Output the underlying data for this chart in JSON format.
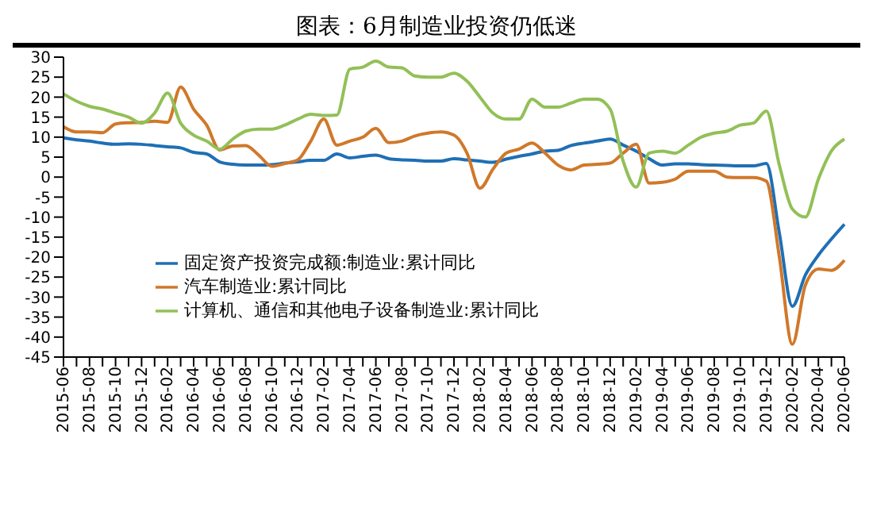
{
  "chart_data": {
    "type": "line",
    "title": "图表：6月制造业投资仍低迷",
    "categories": [
      "2015-06",
      null,
      "2015-08",
      null,
      "2015-10",
      null,
      "2015-12",
      null,
      "2016-02",
      null,
      "2016-04",
      null,
      "2016-06",
      null,
      "2016-08",
      null,
      "2016-10",
      null,
      "2016-12",
      null,
      "2017-02",
      null,
      "2017-04",
      null,
      "2017-06",
      null,
      "2017-08",
      null,
      "2017-10",
      null,
      "2017-12",
      null,
      "2018-02",
      null,
      "2018-04",
      null,
      "2018-06",
      null,
      "2018-08",
      null,
      "2018-10",
      null,
      "2018-12",
      null,
      "2019-02",
      null,
      "2019-04",
      null,
      "2019-06",
      null,
      "2019-08",
      null,
      "2019-10",
      null,
      "2019-12",
      null,
      "2020-02",
      null,
      "2020-04",
      null,
      "2020-06"
    ],
    "series": [
      {
        "name": "固定资产投资完成额:制造业:累计同比",
        "color": "#1f6fb5",
        "values": [
          9.8,
          9.3,
          9.0,
          8.5,
          8.2,
          8.3,
          8.2,
          7.9,
          7.6,
          7.3,
          6.2,
          5.8,
          3.8,
          3.2,
          3.0,
          3.0,
          3.1,
          3.5,
          3.8,
          4.2,
          4.2,
          5.8,
          4.8,
          5.2,
          5.5,
          4.6,
          4.3,
          4.2,
          4.0,
          4.0,
          4.6,
          4.3,
          4.0,
          3.7,
          4.5,
          5.2,
          5.8,
          6.5,
          6.7,
          7.9,
          8.5,
          9.0,
          9.5,
          8.0,
          6.5,
          4.6,
          3.0,
          3.3,
          3.3,
          3.1,
          3.0,
          2.9,
          2.8,
          2.8,
          3.4,
          -14,
          -32.3,
          -24.5,
          -19.5,
          -15.5,
          -11.8
        ]
      },
      {
        "name": "汽车制造业:累计同比",
        "color": "#d0782a",
        "values": [
          12.6,
          11.3,
          11.3,
          11.1,
          13.3,
          13.6,
          13.7,
          14.0,
          13.7,
          22.5,
          17,
          13,
          6.8,
          7.8,
          7.9,
          5.5,
          2.7,
          3.4,
          4.3,
          9,
          14.5,
          8,
          9,
          10,
          12.2,
          8.6,
          9,
          10.3,
          11.0,
          11.3,
          10.5,
          6,
          -2.8,
          2,
          6,
          7,
          8.5,
          6,
          3,
          1.8,
          3,
          3.2,
          3.5,
          6,
          8.2,
          -1.5,
          -1.3,
          -0.5,
          1.5,
          1.5,
          1.5,
          0,
          -0.1,
          -0.1,
          -1,
          -20,
          -41.8,
          -27,
          -23,
          -23.3,
          -20.8
        ]
      },
      {
        "name": "计算机、通信和其他电子设备制造业:累计同比",
        "color": "#92c057",
        "values": [
          20.8,
          19,
          17.7,
          17,
          16,
          15,
          13.5,
          16,
          21,
          13.5,
          10.5,
          9,
          7,
          9.5,
          11.5,
          12,
          12,
          13,
          14.5,
          15.7,
          15.4,
          15.5,
          27,
          27.5,
          29,
          27.5,
          27.3,
          25.3,
          25,
          25,
          26,
          24,
          20,
          16,
          14.5,
          14.5,
          19.5,
          17.5,
          17.5,
          18.5,
          19.5,
          19.5,
          17,
          4,
          -2.5,
          6,
          6.5,
          6,
          8,
          10,
          11,
          11.5,
          13,
          13.5,
          16.5,
          3,
          -8,
          -10,
          -0.5,
          6.5,
          9.5
        ]
      }
    ],
    "ylim": [
      -45,
      30
    ],
    "yticks": [
      -45,
      -40,
      -35,
      -30,
      -25,
      -20,
      -15,
      -10,
      -5,
      0,
      5,
      10,
      15,
      20,
      25,
      30
    ],
    "legend": "bottom left"
  }
}
